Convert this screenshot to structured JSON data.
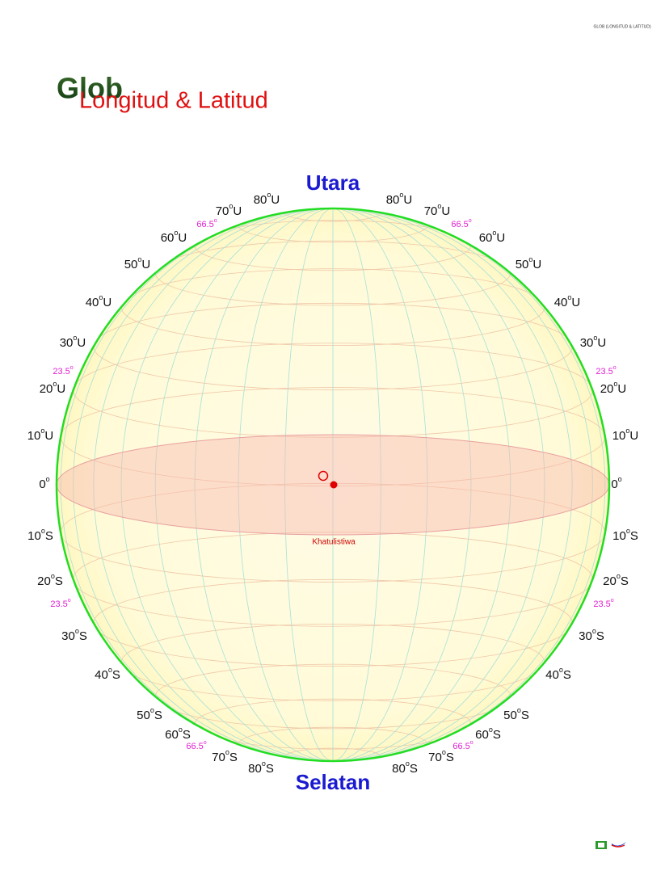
{
  "header_note": "GLOB (LONGITUD & LATITUD)",
  "title": {
    "main": "Glob",
    "sub": "Longitud & Latitud"
  },
  "north": "Utara",
  "south": "Selatan",
  "equator_label": "Khatulistiwa",
  "degree_mark": "o",
  "latitudes": {
    "left": [
      {
        "num": "80",
        "dir": "U"
      },
      {
        "num": "70",
        "dir": "U"
      },
      {
        "num": "60",
        "dir": "U"
      },
      {
        "num": "50",
        "dir": "U"
      },
      {
        "num": "40",
        "dir": "U"
      },
      {
        "num": "30",
        "dir": "U"
      },
      {
        "num": "20",
        "dir": "U"
      },
      {
        "num": "10",
        "dir": "U"
      },
      {
        "num": "0"
      },
      {
        "num": "10",
        "dir": "S"
      },
      {
        "num": "20",
        "dir": "S"
      },
      {
        "num": "30",
        "dir": "S"
      },
      {
        "num": "40",
        "dir": "S"
      },
      {
        "num": "50",
        "dir": "S"
      },
      {
        "num": "60",
        "dir": "S"
      },
      {
        "num": "70",
        "dir": "S"
      },
      {
        "num": "80",
        "dir": "S"
      }
    ],
    "right": [
      {
        "num": "80",
        "dir": "U"
      },
      {
        "num": "70",
        "dir": "U"
      },
      {
        "num": "60",
        "dir": "U"
      },
      {
        "num": "50",
        "dir": "U"
      },
      {
        "num": "40",
        "dir": "U"
      },
      {
        "num": "30",
        "dir": "U"
      },
      {
        "num": "20",
        "dir": "U"
      },
      {
        "num": "10",
        "dir": "U"
      },
      {
        "num": "0"
      },
      {
        "num": "10",
        "dir": "S"
      },
      {
        "num": "20",
        "dir": "S"
      },
      {
        "num": "30",
        "dir": "S"
      },
      {
        "num": "40",
        "dir": "S"
      },
      {
        "num": "50",
        "dir": "S"
      },
      {
        "num": "60",
        "dir": "S"
      },
      {
        "num": "70",
        "dir": "S"
      },
      {
        "num": "80",
        "dir": "S"
      }
    ]
  },
  "tropics": [
    "66.5",
    "66.5",
    "23.5",
    "23.5",
    "23.5",
    "23.5",
    "66.5",
    "66.5"
  ]
}
